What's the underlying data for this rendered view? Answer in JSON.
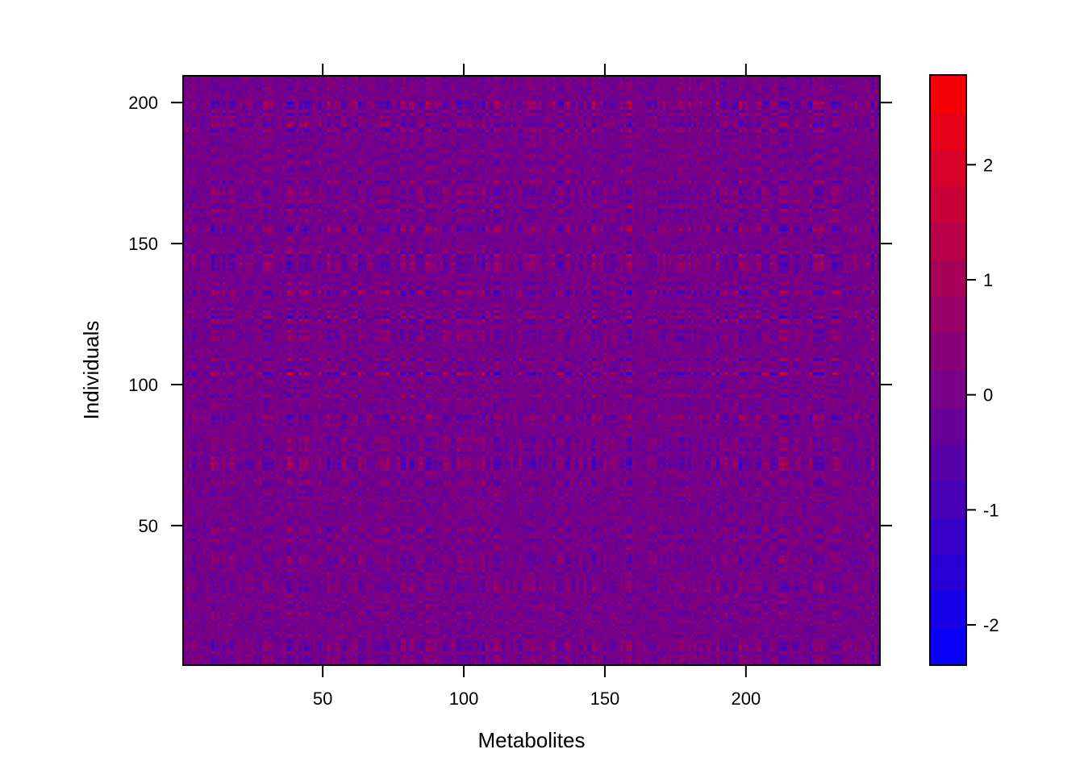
{
  "chart_data": {
    "type": "heatmap",
    "xlabel": "Metabolites",
    "ylabel": "Individuals",
    "xlim": [
      0.5,
      247.5
    ],
    "ylim": [
      0.5,
      209.5
    ],
    "n_cols": 247,
    "n_rows": 209,
    "x_ticks": [
      50,
      100,
      150,
      200
    ],
    "y_ticks": [
      50,
      100,
      150,
      200
    ],
    "colorbar": {
      "range": [
        -2.35,
        2.78
      ],
      "ticks": [
        -2,
        -1,
        0,
        1,
        2
      ],
      "n_levels": 16,
      "low_color": "#0000ff",
      "high_color": "#ff0000"
    },
    "value_summary": {
      "min": -2.35,
      "max": 2.78,
      "typical": 0
    }
  }
}
